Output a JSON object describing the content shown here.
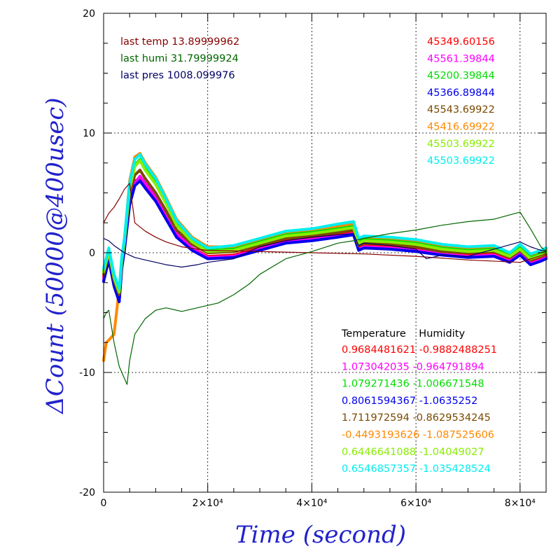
{
  "chart_data": {
    "type": "line",
    "title": "",
    "xlabel": "Time (second)",
    "ylabel": "ΔCount (50000@400usec)",
    "xlim": [
      0,
      85000
    ],
    "ylim": [
      -20,
      20
    ],
    "x_ticks": [
      {
        "value": 0,
        "label": "0"
      },
      {
        "value": 20000,
        "label": "2×10⁴"
      },
      {
        "value": 40000,
        "label": "4×10⁴"
      },
      {
        "value": 60000,
        "label": "6×10⁴"
      },
      {
        "value": 80000,
        "label": "8×10⁴"
      }
    ],
    "y_ticks": [
      {
        "value": -20,
        "label": "-20"
      },
      {
        "value": -10,
        "label": "-10"
      },
      {
        "value": 0,
        "label": "0"
      },
      {
        "value": 10,
        "label": "10"
      },
      {
        "value": 20,
        "label": "20"
      }
    ],
    "grid": true,
    "legend_position": "top-right",
    "series": [
      {
        "color": "#ff0000",
        "x": [
          0,
          1000,
          2000,
          3000,
          3500,
          4000,
          5000,
          6000,
          7000,
          8000,
          10000,
          12000,
          14000,
          17000,
          20000,
          25000,
          30000,
          35000,
          40000,
          45000,
          48000,
          49000,
          50000,
          55000,
          60000,
          65000,
          70000,
          75000,
          78000,
          80000,
          82000,
          84000,
          85000
        ],
        "values": [
          -2.0,
          -0.3,
          -2.5,
          -3.8,
          -1.0,
          0.5,
          4.5,
          6.0,
          6.2,
          5.5,
          4.5,
          3.0,
          1.5,
          0.4,
          -0.3,
          -0.2,
          0.4,
          1.0,
          1.2,
          1.5,
          1.7,
          0.4,
          0.6,
          0.5,
          0.3,
          0.0,
          -0.2,
          -0.1,
          -0.6,
          0.0,
          -0.8,
          -0.5,
          -0.3
        ]
      },
      {
        "color": "#ff00ff",
        "x": [
          0,
          1000,
          2000,
          3000,
          3500,
          4000,
          5000,
          6000,
          7000,
          8000,
          10000,
          12000,
          14000,
          17000,
          20000,
          25000,
          30000,
          35000,
          40000,
          45000,
          48000,
          49000,
          50000,
          55000,
          60000,
          65000,
          70000,
          75000,
          78000,
          80000,
          82000,
          84000,
          85000
        ],
        "values": [
          -2.2,
          -0.5,
          -2.7,
          -4.0,
          -1.2,
          0.3,
          4.3,
          5.8,
          6.4,
          5.8,
          4.7,
          3.2,
          1.6,
          0.4,
          -0.4,
          -0.3,
          0.3,
          0.9,
          1.1,
          1.4,
          1.6,
          0.3,
          0.5,
          0.4,
          0.2,
          -0.1,
          -0.3,
          -0.2,
          -0.7,
          -0.1,
          -0.9,
          -0.6,
          -0.4
        ]
      },
      {
        "color": "#00dd00",
        "x": [
          0,
          1000,
          2000,
          3000,
          3500,
          4000,
          5000,
          6000,
          7000,
          8000,
          10000,
          12000,
          14000,
          17000,
          20000,
          25000,
          30000,
          35000,
          40000,
          45000,
          48000,
          49000,
          50000,
          55000,
          60000,
          65000,
          70000,
          75000,
          78000,
          80000,
          82000,
          84000,
          85000
        ],
        "values": [
          -1.5,
          0.2,
          -2.0,
          -3.2,
          -0.5,
          1.0,
          5.5,
          7.3,
          7.8,
          7.0,
          5.8,
          4.2,
          2.4,
          1.0,
          0.2,
          0.3,
          0.9,
          1.5,
          1.7,
          2.0,
          2.2,
          0.9,
          1.1,
          1.0,
          0.8,
          0.4,
          0.2,
          0.3,
          -0.2,
          0.4,
          -0.4,
          -0.1,
          0.1
        ]
      },
      {
        "color": "#0000ee",
        "x": [
          0,
          1000,
          2000,
          3000,
          3500,
          4000,
          5000,
          6000,
          7000,
          8000,
          10000,
          12000,
          14000,
          17000,
          20000,
          25000,
          30000,
          35000,
          40000,
          45000,
          48000,
          49000,
          50000,
          55000,
          60000,
          65000,
          70000,
          75000,
          78000,
          80000,
          82000,
          84000,
          85000
        ],
        "values": [
          -2.4,
          -0.6,
          -2.8,
          -4.1,
          -1.3,
          0.2,
          4.0,
          5.6,
          6.0,
          5.4,
          4.3,
          2.8,
          1.3,
          0.2,
          -0.5,
          -0.4,
          0.2,
          0.8,
          1.0,
          1.3,
          1.5,
          0.2,
          0.4,
          0.3,
          0.1,
          -0.2,
          -0.4,
          -0.3,
          -0.8,
          -0.2,
          -1.0,
          -0.7,
          -0.5
        ]
      },
      {
        "color": "#7a4a00",
        "x": [
          0,
          1000,
          2000,
          3000,
          3500,
          4000,
          5000,
          6000,
          7000,
          8000,
          10000,
          12000,
          14000,
          17000,
          20000,
          25000,
          30000,
          35000,
          40000,
          45000,
          48000,
          49000,
          50000,
          55000,
          60000,
          65000,
          70000,
          75000,
          78000,
          80000,
          82000,
          84000,
          85000
        ],
        "values": [
          -1.8,
          0.0,
          -2.3,
          -3.5,
          -0.8,
          0.8,
          5.0,
          6.5,
          6.9,
          6.2,
          5.0,
          3.5,
          1.9,
          0.7,
          0.0,
          0.1,
          0.6,
          1.2,
          1.4,
          1.7,
          1.9,
          0.6,
          0.8,
          0.7,
          0.5,
          0.1,
          0.0,
          0.1,
          -0.4,
          0.2,
          -0.6,
          -0.3,
          -0.1
        ]
      },
      {
        "color": "#ff8800",
        "x": [
          0,
          500,
          1000,
          2000,
          3000,
          4000,
          5000,
          6000,
          7000,
          8000,
          10000,
          12000,
          14000,
          17000,
          20000,
          25000,
          30000,
          35000,
          40000,
          45000,
          48000,
          49000,
          50000,
          55000,
          60000,
          65000,
          70000,
          75000,
          78000,
          80000,
          82000,
          84000,
          85000
        ],
        "values": [
          -9.0,
          -7.5,
          -7.3,
          -6.8,
          -3.0,
          1.0,
          6.0,
          8.0,
          8.3,
          7.5,
          6.3,
          4.6,
          2.8,
          1.3,
          0.5,
          0.5,
          1.1,
          1.7,
          1.9,
          2.2,
          2.4,
          1.1,
          1.3,
          1.2,
          1.0,
          0.6,
          0.4,
          0.5,
          0.0,
          0.6,
          -0.2,
          0.1,
          0.3
        ]
      },
      {
        "color": "#88ee00",
        "x": [
          0,
          1000,
          2000,
          3000,
          3500,
          4000,
          5000,
          6000,
          7000,
          8000,
          10000,
          12000,
          14000,
          17000,
          20000,
          25000,
          30000,
          35000,
          40000,
          45000,
          48000,
          49000,
          50000,
          55000,
          60000,
          65000,
          70000,
          75000,
          78000,
          80000,
          82000,
          84000,
          85000
        ],
        "values": [
          -1.6,
          0.1,
          -2.1,
          -3.3,
          -0.6,
          0.9,
          5.4,
          7.2,
          7.7,
          6.9,
          5.7,
          4.1,
          2.3,
          0.9,
          0.1,
          0.2,
          0.8,
          1.4,
          1.6,
          1.9,
          2.1,
          0.8,
          1.0,
          0.9,
          0.7,
          0.3,
          0.1,
          0.2,
          -0.3,
          0.3,
          -0.5,
          -0.2,
          0.0
        ]
      },
      {
        "color": "#00eeee",
        "x": [
          0,
          1000,
          2000,
          3000,
          3500,
          4000,
          5000,
          6000,
          7000,
          8000,
          10000,
          12000,
          14000,
          17000,
          20000,
          25000,
          30000,
          35000,
          40000,
          45000,
          48000,
          49000,
          50000,
          55000,
          60000,
          65000,
          70000,
          75000,
          78000,
          80000,
          82000,
          84000,
          85000
        ],
        "values": [
          -1.3,
          0.4,
          -1.8,
          -3.0,
          -0.3,
          1.2,
          5.8,
          7.8,
          8.2,
          7.4,
          6.2,
          4.5,
          2.7,
          1.2,
          0.4,
          0.6,
          1.2,
          1.8,
          2.0,
          2.4,
          2.6,
          1.2,
          1.4,
          1.3,
          1.1,
          0.7,
          0.5,
          0.6,
          0.0,
          0.7,
          -0.1,
          0.2,
          0.4
        ]
      },
      {
        "color": "#880000",
        "x": [
          0,
          1000,
          2000,
          3000,
          4000,
          5000,
          6000,
          8000,
          10000,
          12000,
          15000,
          18000,
          20000,
          30000,
          40000,
          50000,
          60000,
          70000,
          80000,
          85000
        ],
        "values": [
          2.5,
          3.3,
          3.8,
          4.5,
          5.3,
          5.8,
          2.5,
          1.8,
          1.3,
          0.9,
          0.5,
          0.3,
          0.2,
          0.1,
          0.0,
          -0.1,
          -0.3,
          -0.6,
          -0.8,
          -0.1
        ]
      },
      {
        "color": "#006600",
        "x": [
          0,
          500,
          1000,
          2000,
          3000,
          4000,
          4500,
          5000,
          6000,
          8000,
          10000,
          12000,
          15000,
          18000,
          20000,
          22000,
          25000,
          28000,
          30000,
          35000,
          40000,
          45000,
          48000,
          50000,
          55000,
          60000,
          65000,
          70000,
          75000,
          80000,
          82000,
          84000,
          85000
        ],
        "values": [
          -5.5,
          -5.0,
          -4.8,
          -7.5,
          -9.5,
          -10.5,
          -11.0,
          -9.0,
          -6.8,
          -5.5,
          -4.8,
          -4.6,
          -4.9,
          -4.6,
          -4.4,
          -4.2,
          -3.5,
          -2.6,
          -1.8,
          -0.5,
          0.1,
          0.8,
          1.0,
          1.2,
          1.6,
          1.9,
          2.3,
          2.6,
          2.8,
          3.4,
          2.0,
          0.5,
          0.1
        ]
      },
      {
        "color": "#000066",
        "x": [
          0,
          1000,
          2000,
          3000,
          4000,
          5000,
          6000,
          8000,
          10000,
          12000,
          15000,
          18000,
          20000,
          25000,
          30000,
          35000,
          40000,
          45000,
          48000,
          49000,
          50000,
          55000,
          60000,
          62000,
          65000,
          70000,
          75000,
          80000,
          82000,
          84000,
          85000
        ],
        "values": [
          1.2,
          1.0,
          0.6,
          0.3,
          0.0,
          -0.2,
          -0.4,
          -0.6,
          -0.8,
          -1.0,
          -1.2,
          -1.0,
          -0.8,
          -0.5,
          0.5,
          1.0,
          1.3,
          1.5,
          1.6,
          0.6,
          0.8,
          0.6,
          0.3,
          -0.5,
          -0.2,
          -0.3,
          0.3,
          0.9,
          0.5,
          0.2,
          0.1
        ]
      }
    ],
    "annotations_topleft": [
      {
        "text": "last temp 13.89999962",
        "color": "#880000"
      },
      {
        "text": "last humi 31.79999924",
        "color": "#006600"
      },
      {
        "text": "last pres 1008.099976",
        "color": "#000066"
      }
    ],
    "annotations_topright": [
      {
        "text": "45349.60156",
        "color": "#ff0000"
      },
      {
        "text": "45561.39844",
        "color": "#ff00ff"
      },
      {
        "text": "45200.39844",
        "color": "#00dd00"
      },
      {
        "text": "45366.89844",
        "color": "#0000ee"
      },
      {
        "text": "45543.69922",
        "color": "#7a4a00"
      },
      {
        "text": "45416.69922",
        "color": "#ff8800"
      },
      {
        "text": "45503.69922",
        "color": "#88ee00"
      },
      {
        "text": "45503.69922",
        "color": "#00eeee"
      }
    ],
    "coefficients_header": "Temperature    Humidity",
    "coefficients": [
      {
        "text": "0.9684481621 -0.9882488251",
        "color": "#ff0000"
      },
      {
        "text": "1.073042035 -0.964791894",
        "color": "#ff00ff"
      },
      {
        "text": "1.079271436 -1.006671548",
        "color": "#00dd00"
      },
      {
        "text": "0.8061594367 -1.0635252",
        "color": "#0000ee"
      },
      {
        "text": "1.711972594 -0.8629534245",
        "color": "#7a4a00"
      },
      {
        "text": "-0.4493193626 -1.087525606",
        "color": "#ff8800"
      },
      {
        "text": "0.6446641088 -1.04049027",
        "color": "#88ee00"
      },
      {
        "text": "0.6546857357 -1.035428524",
        "color": "#00eeee"
      }
    ]
  }
}
